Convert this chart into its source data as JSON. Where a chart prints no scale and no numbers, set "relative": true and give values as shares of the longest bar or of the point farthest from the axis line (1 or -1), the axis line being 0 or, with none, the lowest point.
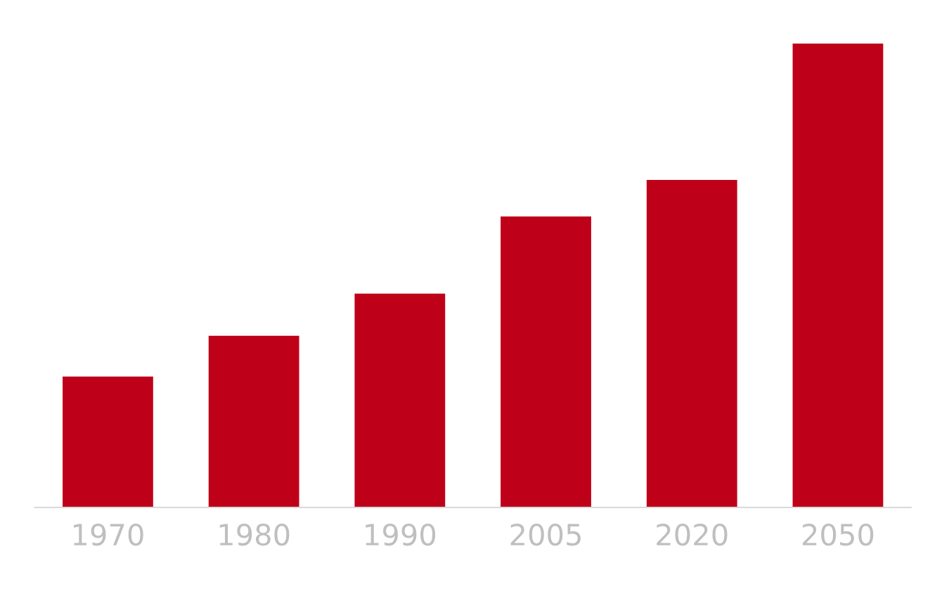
{
  "chart_data": {
    "type": "bar",
    "categories": [
      "1970",
      "1980",
      "1990",
      "2005",
      "2020",
      "2050"
    ],
    "values": [
      0.282,
      0.37,
      0.461,
      0.627,
      0.706,
      1
    ],
    "color": "#bf0019",
    "relative": true,
    "grid": false,
    "legend": false
  }
}
